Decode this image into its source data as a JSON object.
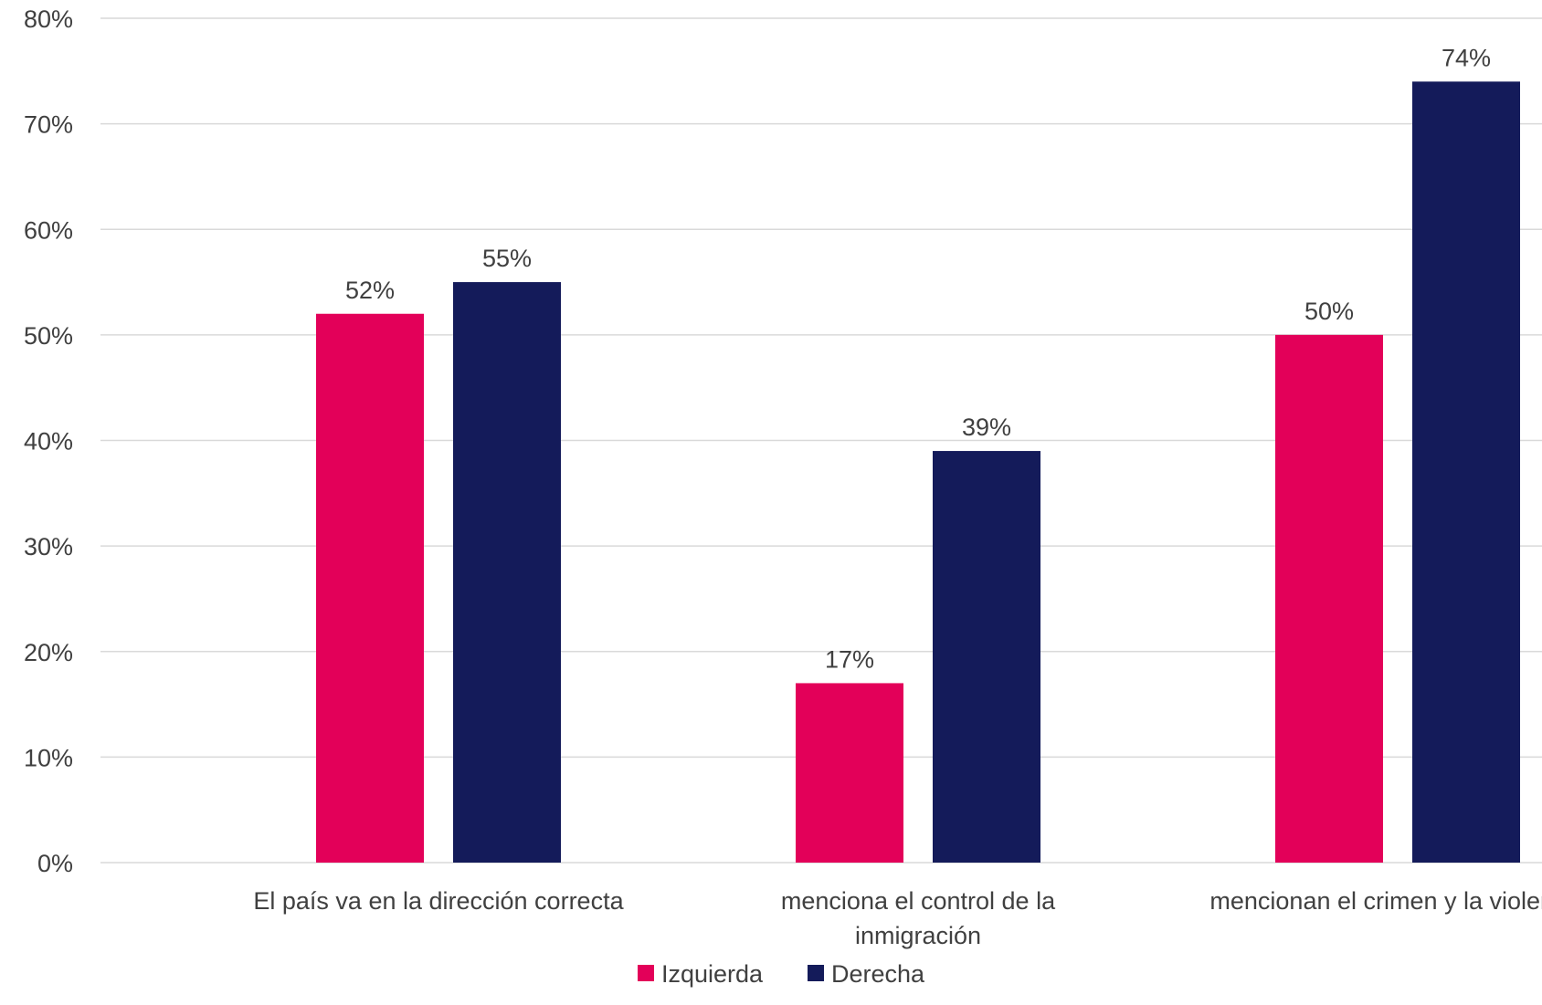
{
  "chart_data": {
    "type": "bar",
    "categories": [
      [
        "El país va en la dirección correcta"
      ],
      [
        "menciona el control de la",
        "inmigración"
      ],
      [
        "mencionan el crimen y la violencia"
      ]
    ],
    "series": [
      {
        "name": "Izquierda",
        "color": "#e30059",
        "values": [
          52,
          17,
          50
        ],
        "labels": [
          "52%",
          "17%",
          "50%"
        ]
      },
      {
        "name": "Derecha",
        "color": "#141b5a",
        "values": [
          55,
          39,
          74
        ],
        "labels": [
          "55%",
          "39%",
          "74%"
        ]
      }
    ],
    "ylim": [
      0,
      80
    ],
    "yticks": [
      {
        "value": 0,
        "label": "0%"
      },
      {
        "value": 10,
        "label": "10%"
      },
      {
        "value": 20,
        "label": "20%"
      },
      {
        "value": 30,
        "label": "30%"
      },
      {
        "value": 40,
        "label": "40%"
      },
      {
        "value": 50,
        "label": "50%"
      },
      {
        "value": 60,
        "label": "60%"
      },
      {
        "value": 70,
        "label": "70%"
      },
      {
        "value": 80,
        "label": "80%"
      }
    ],
    "grid": true,
    "legend_position": "bottom",
    "title": "",
    "xlabel": "",
    "ylabel": ""
  }
}
